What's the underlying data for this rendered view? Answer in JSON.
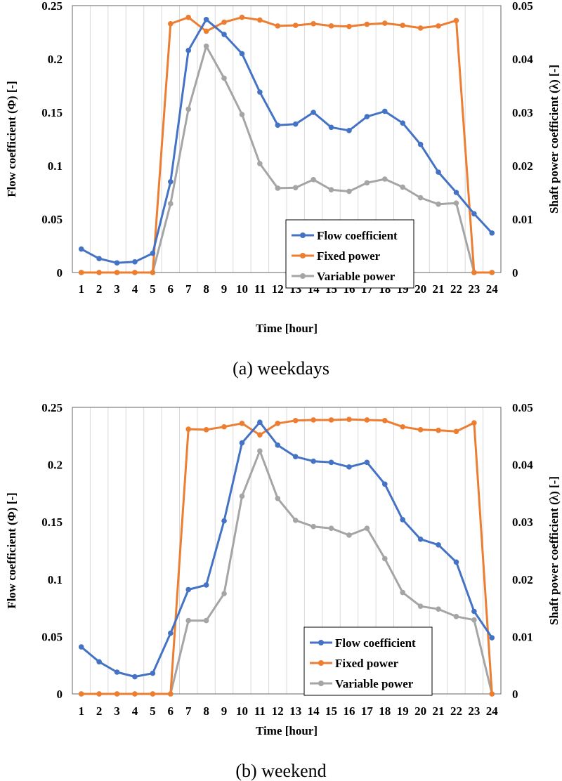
{
  "colors": {
    "flow": "#4472c4",
    "fixed": "#ed7d31",
    "variable": "#a5a5a5"
  },
  "chart_data": [
    {
      "type": "line",
      "caption": "(a)  weekdays",
      "xlabel": "Time [hour]",
      "ylabel_left": "Flow coefficient (Φ) [-]",
      "ylabel_right": "Shaft power coefficient (λ) [-]",
      "x": [
        1,
        2,
        3,
        4,
        5,
        6,
        7,
        8,
        9,
        10,
        11,
        12,
        13,
        14,
        15,
        16,
        17,
        18,
        19,
        20,
        21,
        22,
        23,
        24
      ],
      "ylim_left": [
        0,
        0.25
      ],
      "ylim_right": [
        0,
        0.05
      ],
      "yticks_left": [
        "0",
        "0.05",
        "0.1",
        "0.15",
        "0.2",
        "0.25"
      ],
      "yticks_right": [
        "0",
        "0.01",
        "0.02",
        "0.03",
        "0.04",
        "0.05"
      ],
      "grid": "vertical",
      "legend_position": "lower-center",
      "series": [
        {
          "name": "Flow coefficient",
          "axis": "left",
          "color_key": "flow",
          "values": [
            0.022,
            0.013,
            0.009,
            0.01,
            0.018,
            0.085,
            0.208,
            0.237,
            0.223,
            0.205,
            0.169,
            0.138,
            0.139,
            0.15,
            0.136,
            0.133,
            0.146,
            0.151,
            0.14,
            0.12,
            0.094,
            0.075,
            0.055,
            0.037
          ]
        },
        {
          "name": "Fixed power",
          "axis": "right",
          "color_key": "fixed",
          "values": [
            0,
            0,
            0,
            0,
            0,
            0.0466,
            0.0478,
            0.0452,
            0.0469,
            0.0478,
            0.0473,
            0.0462,
            0.0463,
            0.0466,
            0.0462,
            0.0461,
            0.0465,
            0.0467,
            0.0463,
            0.0458,
            0.0462,
            0.0472,
            0,
            0
          ]
        },
        {
          "name": "Variable power",
          "axis": "right",
          "color_key": "variable",
          "values": [
            0,
            0,
            0,
            0,
            0,
            0.0129,
            0.0306,
            0.0424,
            0.0364,
            0.0296,
            0.0204,
            0.0158,
            0.0159,
            0.0174,
            0.0155,
            0.0152,
            0.0168,
            0.0175,
            0.016,
            0.014,
            0.0128,
            0.013,
            0,
            0
          ]
        }
      ]
    },
    {
      "type": "line",
      "caption": "(b)  weekend",
      "xlabel": "Time [hour]",
      "ylabel_left": "Flow coefficient (Φ) [-]",
      "ylabel_right": "Shaft power coefficient (λ) [-]",
      "x": [
        1,
        2,
        3,
        4,
        5,
        6,
        7,
        8,
        9,
        10,
        11,
        12,
        13,
        14,
        15,
        16,
        17,
        18,
        19,
        20,
        21,
        22,
        23,
        24
      ],
      "ylim_left": [
        0,
        0.25
      ],
      "ylim_right": [
        0,
        0.05
      ],
      "yticks_left": [
        "0",
        "0.05",
        "0.1",
        "0.15",
        "0.2",
        "0.25"
      ],
      "yticks_right": [
        "0",
        "0.01",
        "0.02",
        "0.03",
        "0.04",
        "0.05"
      ],
      "grid": "vertical",
      "legend_position": "lower-right",
      "series": [
        {
          "name": "Flow coefficient",
          "axis": "left",
          "color_key": "flow",
          "values": [
            0.041,
            0.028,
            0.019,
            0.015,
            0.018,
            0.053,
            0.091,
            0.095,
            0.151,
            0.219,
            0.237,
            0.217,
            0.207,
            0.203,
            0.202,
            0.198,
            0.202,
            0.183,
            0.152,
            0.135,
            0.13,
            0.115,
            0.072,
            0.049
          ]
        },
        {
          "name": "Fixed power",
          "axis": "right",
          "color_key": "fixed",
          "values": [
            0,
            0,
            0,
            0,
            0,
            0,
            0.0462,
            0.0461,
            0.0466,
            0.0472,
            0.0452,
            0.0472,
            0.0477,
            0.0478,
            0.0478,
            0.0479,
            0.0478,
            0.0477,
            0.0466,
            0.0461,
            0.046,
            0.0458,
            0.0473,
            0
          ]
        },
        {
          "name": "Variable power",
          "axis": "right",
          "color_key": "variable",
          "values": [
            0,
            0,
            0,
            0,
            0,
            0,
            0.0128,
            0.0128,
            0.0175,
            0.0345,
            0.0424,
            0.0341,
            0.0303,
            0.0292,
            0.0289,
            0.0277,
            0.0289,
            0.0236,
            0.0177,
            0.0153,
            0.0148,
            0.0135,
            0.0129,
            0
          ]
        }
      ]
    }
  ]
}
